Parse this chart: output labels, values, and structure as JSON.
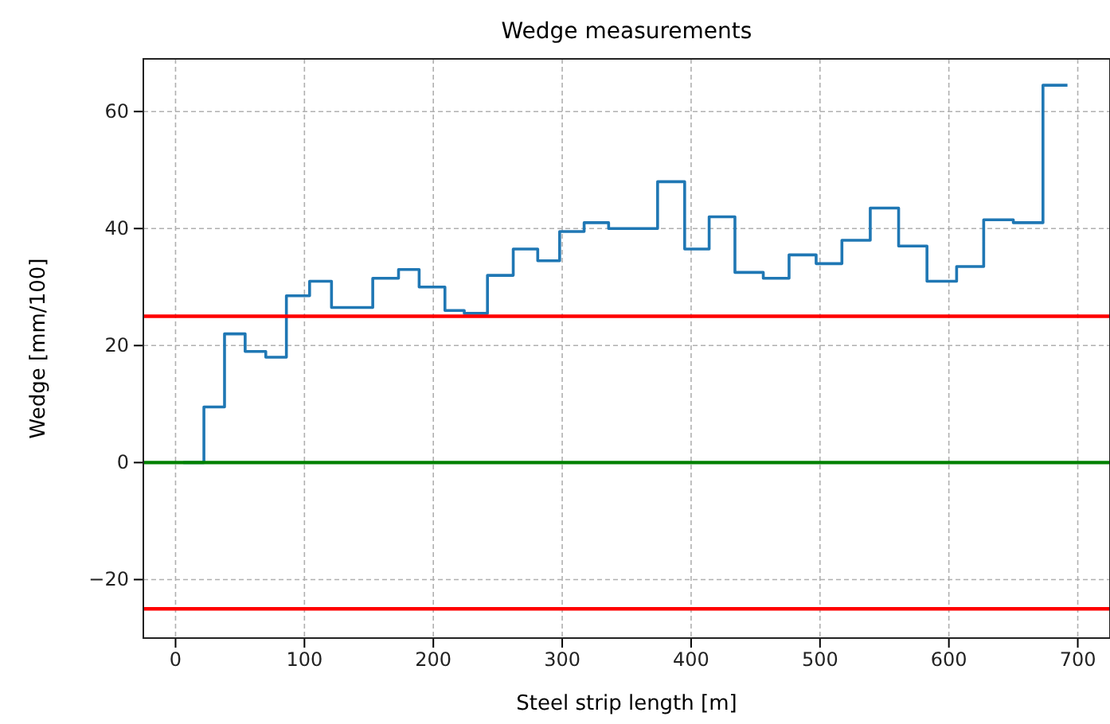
{
  "chart_data": {
    "type": "step",
    "title": "Wedge measurements",
    "xlabel": "Steel strip length [m]",
    "ylabel": "Wedge [mm/100]",
    "x": [
      6,
      22,
      38,
      54,
      70,
      86,
      104,
      121,
      153,
      173,
      189,
      209,
      224,
      242,
      262,
      281,
      298,
      317,
      336,
      374,
      395,
      414,
      434,
      456,
      476,
      497,
      517,
      539,
      561,
      583,
      606,
      627,
      650,
      673,
      692
    ],
    "series": [
      {
        "color": "#1f77b4",
        "values": [
          0,
          9.5,
          22,
          19,
          18,
          28.5,
          31,
          26.5,
          31.5,
          33,
          30,
          26,
          25.5,
          32,
          36.5,
          34.5,
          39.5,
          41,
          40,
          48,
          36.5,
          42,
          32.5,
          31.5,
          35.5,
          34,
          38,
          43.5,
          37,
          31,
          33.5,
          41.5,
          41,
          64.5,
          64.5
        ]
      }
    ],
    "xlim": [
      -25,
      725
    ],
    "ylim": [
      -30,
      69
    ],
    "xticks": [
      0,
      100,
      200,
      300,
      400,
      500,
      600,
      700
    ],
    "yticks": [
      -20,
      0,
      20,
      40,
      60
    ],
    "ref_lines": [
      {
        "axis": "y",
        "value": 25,
        "color": "#ff0000"
      },
      {
        "axis": "y",
        "value": -25,
        "color": "#ff0000"
      },
      {
        "axis": "y",
        "value": 0,
        "color": "#008000"
      }
    ],
    "grid": true,
    "line_style": "solid"
  }
}
